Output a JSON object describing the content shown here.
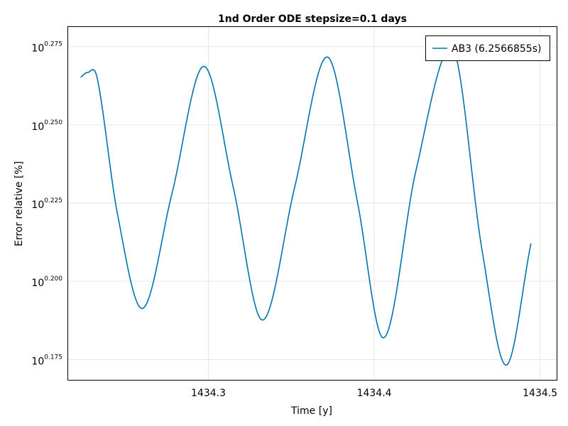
{
  "chart_data": {
    "type": "line",
    "title": "1nd Order ODE stepsize=0.1 days",
    "xlabel": "Time [y]",
    "ylabel": "Error relative [%]",
    "y_scale": "log10",
    "xlim": [
      1434.215,
      1434.51
    ],
    "ylim_exponent": [
      0.1685,
      0.2815
    ],
    "x_ticks": [
      1434.3,
      1434.4,
      1434.5
    ],
    "x_tick_labels": [
      "1434.3",
      "1434.4",
      "1434.5"
    ],
    "y_ticks_exponent": [
      0.175,
      0.2,
      0.225,
      0.25,
      0.275
    ],
    "y_tick_base": "10",
    "y_tick_exponent_labels": [
      "0.175",
      "0.200",
      "0.225",
      "0.250",
      "0.275"
    ],
    "grid": true,
    "legend_position": "top-right",
    "series": [
      {
        "name": "AB3 (6.2566855s)",
        "color": "#0072b2",
        "x": [
          1434.223,
          1434.227,
          1434.233,
          1434.245,
          1434.26,
          1434.278,
          1434.2973,
          1434.315,
          1434.3326,
          1434.352,
          1434.3716,
          1434.39,
          1434.4055,
          1434.425,
          1434.4465,
          1434.465,
          1434.4795,
          1434.4945
        ],
        "y_exponent": [
          0.2652,
          0.2667,
          0.2648,
          0.222,
          0.1913,
          0.228,
          0.2687,
          0.23,
          0.1876,
          0.23,
          0.2717,
          0.225,
          0.1819,
          0.235,
          0.2748,
          0.21,
          0.1732,
          0.2121
        ]
      }
    ]
  }
}
